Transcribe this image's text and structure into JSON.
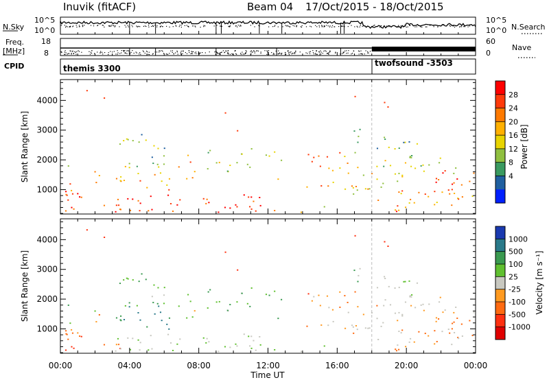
{
  "header": {
    "station": "Inuvik (fitACF)",
    "beam": "Beam 04",
    "daterange": "17/Oct/2015 - 18/Oct/2015"
  },
  "top_panels": {
    "nsky_label": "N.Sky",
    "nsky_ticks": [
      "10^5",
      "10^0"
    ],
    "nsearch_label": "N.Search",
    "nsearch_ticks": [
      "10^5",
      "10^0"
    ],
    "freq_label": "Freq.",
    "freq_unit": "[MHz]",
    "freq_ticks": [
      "18",
      "8"
    ],
    "nave_label": "Nave",
    "nave_ticks": [
      "60",
      "0"
    ],
    "cpid_label": "CPID",
    "cpid_segments": [
      {
        "name": "themis 3300",
        "start_hour": 0
      },
      {
        "name": "twofsound -3503",
        "start_hour": 18
      }
    ]
  },
  "chart_data": [
    {
      "type": "heatmap",
      "title": "",
      "xlabel": "Time UT",
      "ylabel": "Slant Range [km]",
      "xlim": [
        0,
        24
      ],
      "ylim": [
        180,
        4700
      ],
      "x_ticks": [
        "00:00",
        "04:00",
        "08:00",
        "12:00",
        "16:00",
        "20:00",
        "00:00"
      ],
      "y_ticks": [
        1000,
        2000,
        3000,
        4000
      ],
      "colorbar": {
        "label": "Power [dB]",
        "ticks": [
          "28",
          "24",
          "20",
          "16",
          "12",
          "8",
          "4"
        ],
        "colors": [
          "#ff0000",
          "#ff3a0a",
          "#ff7a00",
          "#ffb000",
          "#e8d400",
          "#90c040",
          "#3a9a60",
          "#2060a0",
          "#0020ff"
        ]
      }
    },
    {
      "type": "heatmap",
      "title": "",
      "xlabel": "Time UT",
      "ylabel": "Slant Range [km]",
      "xlim": [
        0,
        24
      ],
      "ylim": [
        180,
        4700
      ],
      "x_ticks": [
        "00:00",
        "04:00",
        "08:00",
        "12:00",
        "16:00",
        "20:00",
        "00:00"
      ],
      "y_ticks": [
        1000,
        2000,
        3000,
        4000
      ],
      "colorbar": {
        "label": "Velocity [m s⁻¹]",
        "ticks": [
          "1000",
          "500",
          "100",
          "25",
          "-25",
          "-100",
          "-500",
          "-1000"
        ],
        "colors": [
          "#1a3ab0",
          "#2a7a8a",
          "#3a9a50",
          "#60c030",
          "#c8c8c0",
          "#ff9a20",
          "#ff6a10",
          "#ff3010",
          "#e00000"
        ]
      }
    }
  ]
}
